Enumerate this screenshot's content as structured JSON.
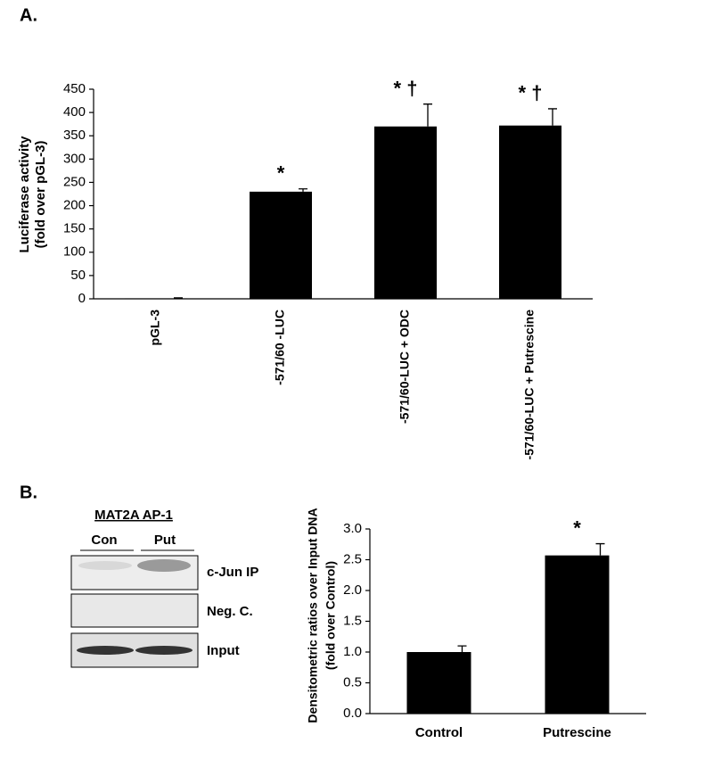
{
  "panel_labels": [
    "A.",
    "B."
  ],
  "blot": {
    "title": "MAT2A AP-1",
    "lanes": [
      "Con",
      "Put"
    ],
    "rows": [
      "c-Jun IP",
      "Neg. C.",
      "Input"
    ]
  },
  "chart_data": [
    {
      "type": "bar",
      "ylabel": [
        "Luciferase activity",
        "(fold over pGL-3)"
      ],
      "categories": [
        "pGL-3",
        "-571/60 -LUC",
        "-571/60-LUC + ODC",
        "-571/60-LUC + Putrescine"
      ],
      "values": [
        1,
        230,
        370,
        372
      ],
      "errors": [
        1,
        6,
        48,
        36
      ],
      "annotations": [
        null,
        "*",
        "* †",
        "* †"
      ],
      "color": "#000000",
      "ylim": [
        0,
        450
      ],
      "yticks": [
        0,
        50,
        100,
        150,
        200,
        250,
        300,
        350,
        400,
        450
      ]
    },
    {
      "type": "bar",
      "ylabel": [
        "Densitometric  ratios over Input DNA",
        "(fold over Control)"
      ],
      "categories": [
        "Control",
        "Putrescine"
      ],
      "values": [
        1.0,
        2.57
      ],
      "errors": [
        0.1,
        0.19
      ],
      "annotations": [
        null,
        "*"
      ],
      "color": "#000000",
      "ylim": [
        0,
        3.0
      ],
      "yticks": [
        {
          "value": 0,
          "label": "0.0"
        },
        {
          "value": 0.5,
          "label": "0.5"
        },
        {
          "value": 1.0,
          "label": "1.0"
        },
        {
          "value": 1.5,
          "label": "1.5"
        },
        {
          "value": 2.0,
          "label": "2.0"
        },
        {
          "value": 2.5,
          "label": "2.5"
        },
        {
          "value": 3.0,
          "label": "3.0"
        }
      ]
    }
  ]
}
